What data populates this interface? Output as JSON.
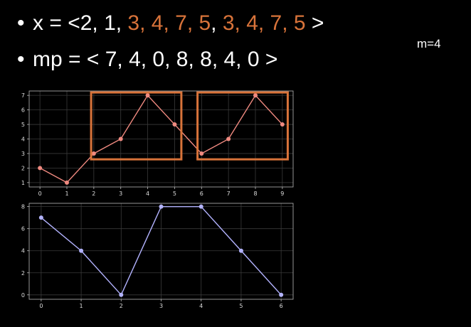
{
  "slide": {
    "line1": {
      "bullet": "•",
      "segments": [
        {
          "text": "x = <2, 1, ",
          "highlight": false
        },
        {
          "text": "3, 4, 7, 5",
          "highlight": true
        },
        {
          "text": ", ",
          "highlight": false
        },
        {
          "text": "3, 4, 7, 5",
          "highlight": true
        },
        {
          "text": " >",
          "highlight": false
        }
      ]
    },
    "line2": {
      "bullet": "•",
      "segments": [
        {
          "text": "mp = < 7, 4, 0, 8, 8, 4, 0 >",
          "highlight": false
        }
      ]
    },
    "m_label": "m=4",
    "highlight_color": "#d8733a"
  },
  "chart_data": [
    {
      "type": "line",
      "x": [
        0,
        1,
        2,
        3,
        4,
        5,
        6,
        7,
        8,
        9
      ],
      "series": [
        {
          "values": [
            2,
            1,
            3,
            4,
            7,
            5,
            3,
            4,
            7,
            5
          ],
          "color": "#f08a80"
        }
      ],
      "xlim": [
        -0.4,
        9.4
      ],
      "ylim": [
        0.7,
        7.3
      ],
      "xticks": [
        0,
        1,
        2,
        3,
        4,
        5,
        6,
        7,
        8,
        9
      ],
      "yticks": [
        1,
        2,
        3,
        4,
        5,
        6,
        7
      ],
      "grid": true,
      "highlight_boxes": [
        {
          "x_range": [
            1.9,
            5.25
          ],
          "y_range": [
            2.6,
            7.2
          ]
        },
        {
          "x_range": [
            5.85,
            9.2
          ],
          "y_range": [
            2.6,
            7.2
          ]
        }
      ],
      "box_color": "#d8733a"
    },
    {
      "type": "line",
      "x": [
        0,
        1,
        2,
        3,
        4,
        5,
        6
      ],
      "series": [
        {
          "values": [
            7,
            4,
            0,
            8,
            8,
            4,
            0
          ],
          "color": "#b3b3ff"
        }
      ],
      "xlim": [
        -0.3,
        6.3
      ],
      "ylim": [
        -0.4,
        8.3
      ],
      "xticks": [
        0,
        1,
        2,
        3,
        4,
        5,
        6
      ],
      "yticks": [
        0,
        2,
        4,
        6,
        8
      ],
      "grid": true
    }
  ]
}
